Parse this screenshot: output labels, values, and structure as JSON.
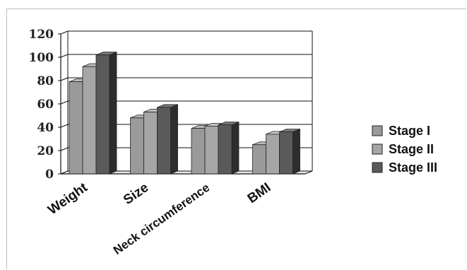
{
  "chart_data": {
    "type": "bar",
    "categories": [
      "Weight",
      "Size",
      "Neck circumference",
      "BMI"
    ],
    "series": [
      {
        "name": "Stage I",
        "values": [
          79,
          48,
          39,
          25
        ],
        "color": "#9a9a9a"
      },
      {
        "name": "Stage II",
        "values": [
          92,
          53,
          41,
          34
        ],
        "color": "#a6a6a6"
      },
      {
        "name": "Stage III",
        "values": [
          102,
          57,
          42,
          36
        ],
        "color": "#5a5a5a"
      }
    ],
    "yticks": [
      0,
      20,
      40,
      60,
      80,
      100,
      120
    ],
    "ylim": [
      0,
      120
    ],
    "grid": true,
    "legend": "right",
    "title": "",
    "xlabel": "",
    "ylabel": ""
  }
}
